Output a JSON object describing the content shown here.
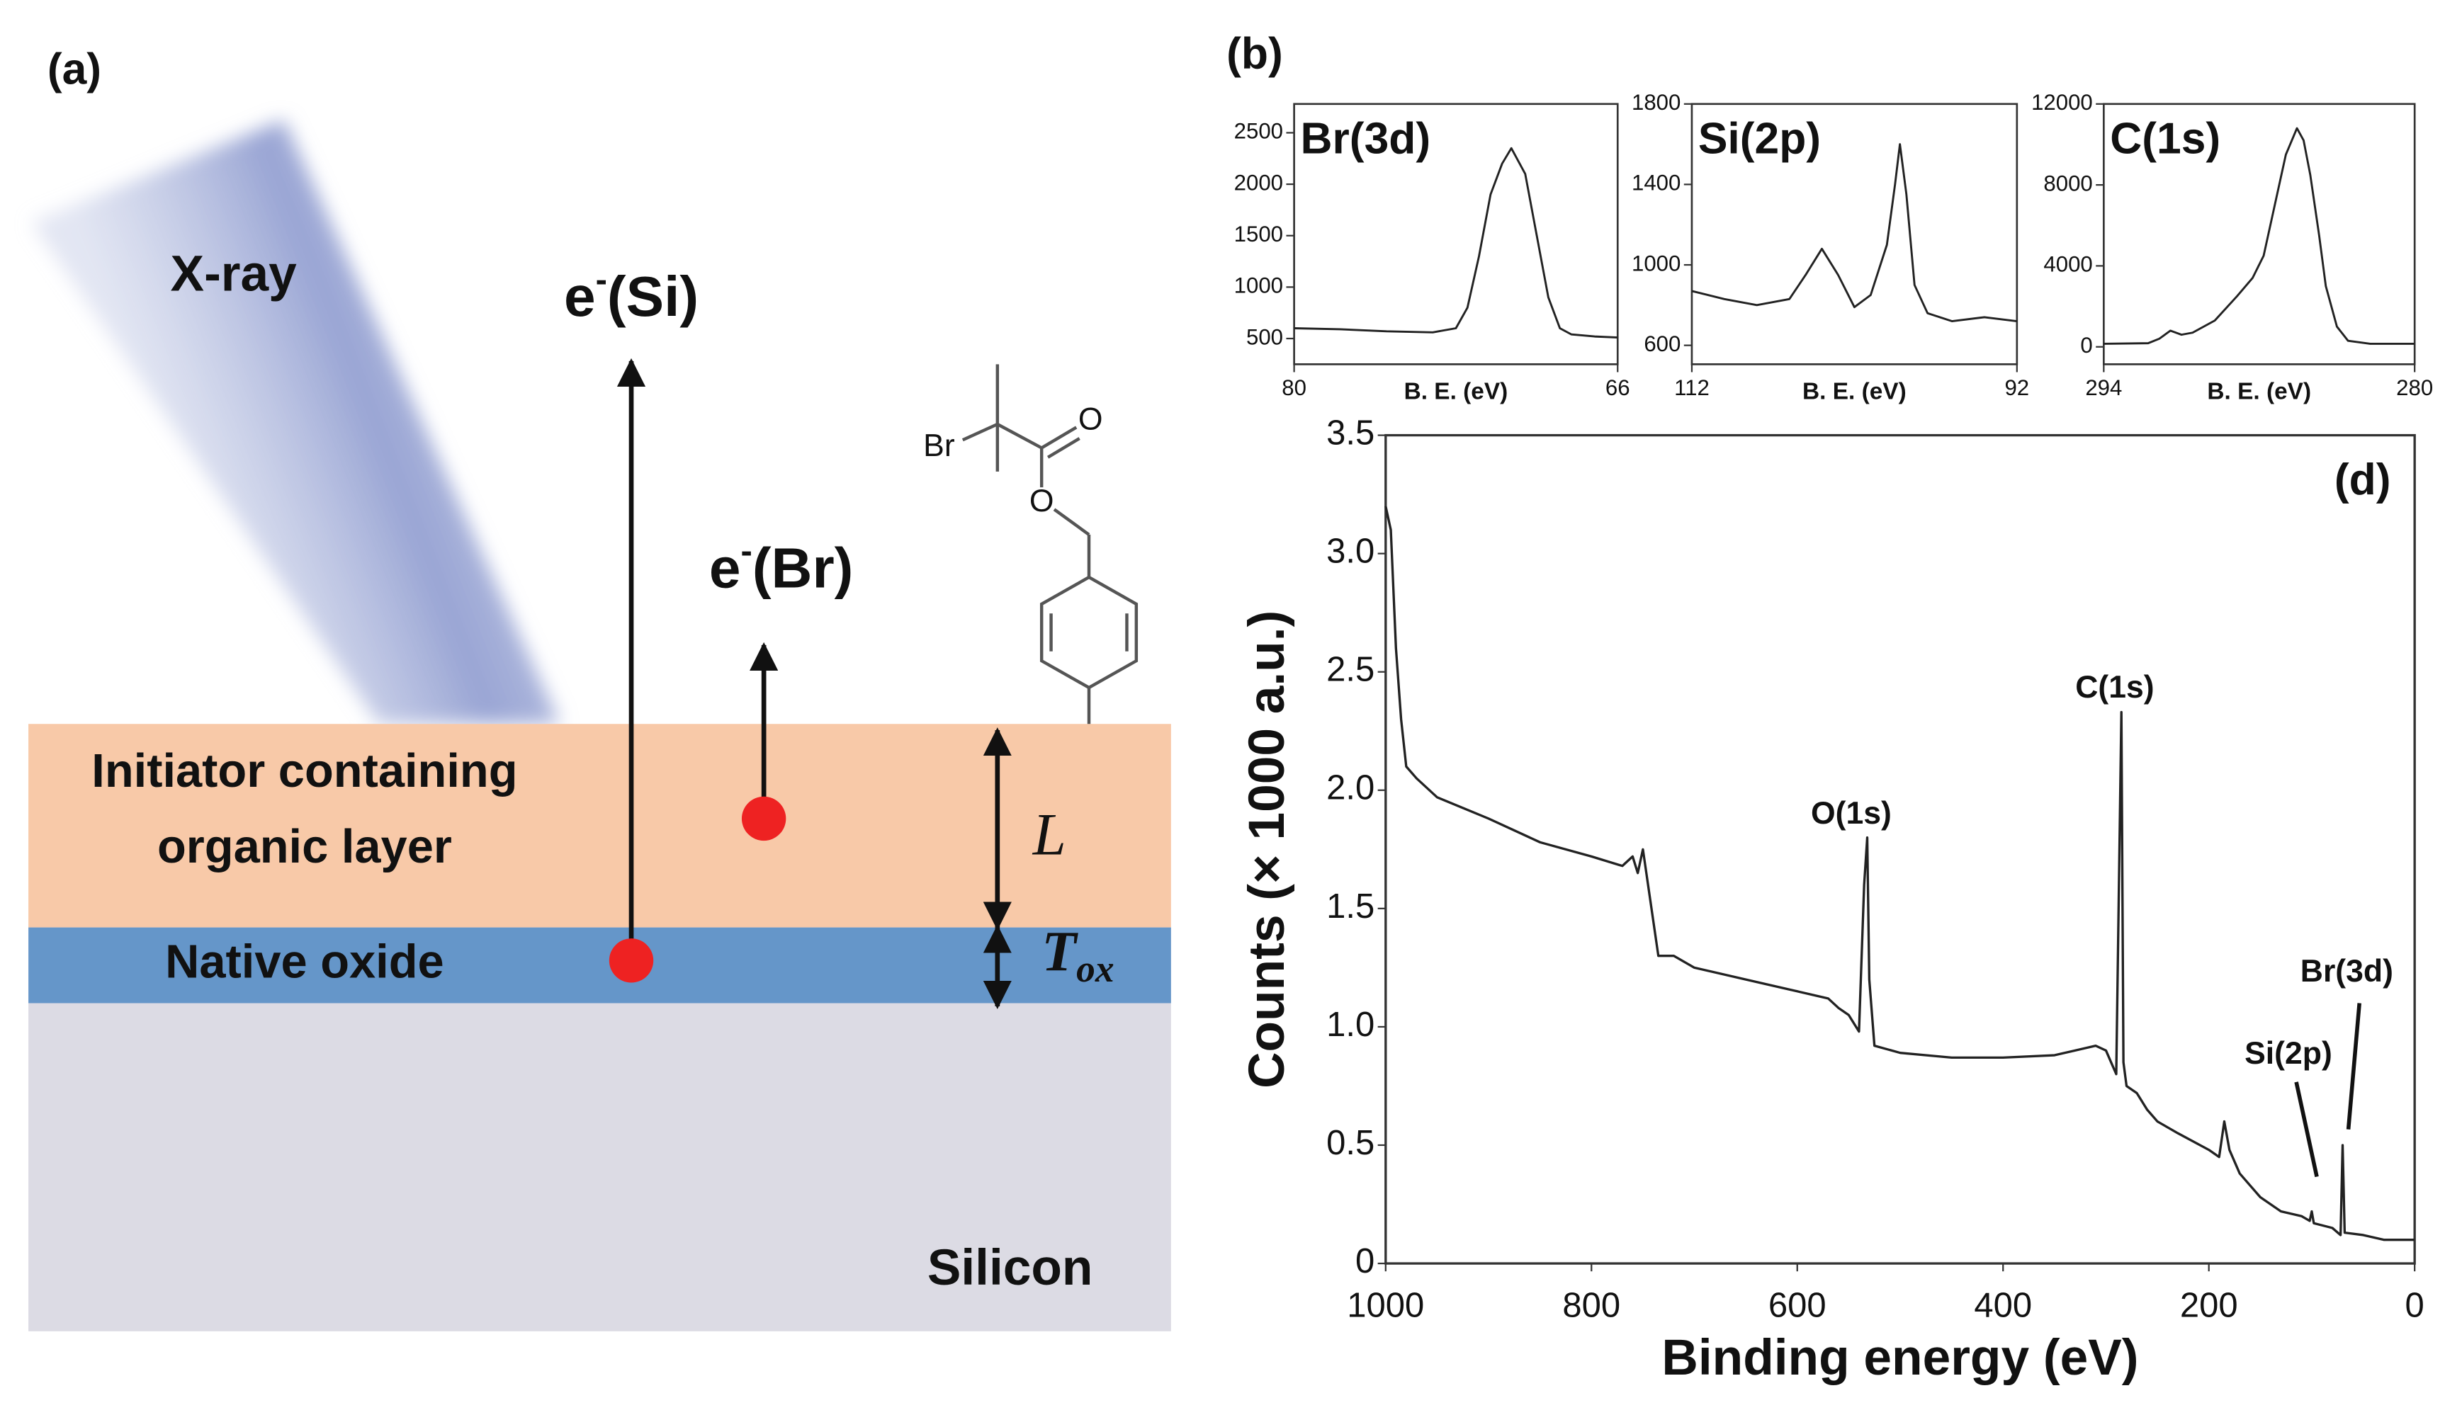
{
  "panel_a": {
    "label": "(a)",
    "xray": "X-ray",
    "electron_si": {
      "base": "e",
      "sup": "-",
      "rest": "(Si)"
    },
    "electron_br": {
      "base": "e",
      "sup": "-",
      "rest": "(Br)"
    },
    "organic_layer": [
      "Initiator containing",
      "organic layer"
    ],
    "oxide": "Native oxide",
    "silicon": "Silicon",
    "thickness_l": "L",
    "thickness_ox": {
      "base": "T",
      "sub": "ox"
    },
    "molecule": {
      "br": "Br",
      "o_carbonyl": "O",
      "o_ester": "O"
    }
  },
  "panel_b_label": "(b)",
  "chart_data": [
    {
      "type": "line",
      "title": "Br(3d)",
      "xlabel": "B. E. (eV)",
      "color": "#222222",
      "x": [
        80,
        78,
        76,
        74,
        73,
        72.5,
        72,
        71.5,
        71,
        70.6,
        70,
        69.5,
        69,
        68.5,
        68,
        67,
        66
      ],
      "values": [
        600,
        590,
        570,
        560,
        600,
        800,
        1300,
        1900,
        2200,
        2350,
        2100,
        1500,
        900,
        600,
        540,
        520,
        510
      ],
      "xlim": [
        80,
        66
      ],
      "xticks": [
        80,
        66
      ],
      "ylim": [
        250,
        2780
      ],
      "yticks": [
        500,
        1000,
        1500,
        2000,
        2500
      ]
    },
    {
      "type": "line",
      "title": "Si(2p)",
      "xlabel": "B. E. (eV)",
      "color": "#222222",
      "x": [
        112,
        110,
        108,
        106,
        105,
        104,
        103,
        102,
        101,
        100,
        99.5,
        99.2,
        98.8,
        98.3,
        97.5,
        96,
        94,
        92
      ],
      "values": [
        870,
        830,
        800,
        830,
        950,
        1080,
        950,
        790,
        850,
        1100,
        1400,
        1600,
        1350,
        900,
        760,
        720,
        740,
        720
      ],
      "xlim": [
        112,
        92
      ],
      "xticks": [
        112,
        92
      ],
      "ylim": [
        506,
        1800
      ],
      "yticks": [
        600,
        1000,
        1400,
        1800
      ]
    },
    {
      "type": "line",
      "title": "C(1s)",
      "xlabel": "B. E. (eV)",
      "color": "#222222",
      "x": [
        294,
        292,
        291.5,
        291,
        290.5,
        290,
        289,
        288,
        287.3,
        286.8,
        286.3,
        285.8,
        285.3,
        285,
        284.7,
        284.3,
        284,
        283.5,
        283,
        282,
        280
      ],
      "values": [
        150,
        180,
        400,
        800,
        600,
        700,
        1300,
        2500,
        3400,
        4500,
        7000,
        9500,
        10800,
        10200,
        8500,
        5500,
        3000,
        1000,
        300,
        150,
        150
      ],
      "xlim": [
        294,
        280
      ],
      "xticks": [
        294,
        280
      ],
      "ylim": [
        -860,
        12000
      ],
      "yticks": [
        0,
        4000,
        8000,
        12000
      ]
    },
    {
      "type": "line",
      "panel_label": "(d)",
      "xlabel": "Binding energy (eV)",
      "ylabel": "Counts (× 1000 a.u.)",
      "color": "#222222",
      "x": [
        1000,
        995,
        990,
        985,
        980,
        970,
        950,
        900,
        850,
        800,
        770,
        760,
        755,
        750,
        745,
        740,
        735,
        720,
        700,
        650,
        600,
        570,
        560,
        550,
        540,
        535,
        532,
        530,
        525,
        500,
        450,
        400,
        350,
        310,
        300,
        295,
        290,
        285,
        283,
        280,
        270,
        260,
        250,
        230,
        200,
        190,
        185,
        180,
        170,
        160,
        150,
        130,
        110,
        102,
        100,
        98,
        80,
        72,
        70,
        68,
        50,
        30,
        10,
        0
      ],
      "values": [
        3.2,
        3.1,
        2.6,
        2.3,
        2.1,
        2.05,
        1.97,
        1.88,
        1.78,
        1.72,
        1.68,
        1.72,
        1.65,
        1.75,
        1.6,
        1.45,
        1.3,
        1.3,
        1.25,
        1.2,
        1.15,
        1.12,
        1.08,
        1.05,
        0.98,
        1.6,
        1.8,
        1.2,
        0.92,
        0.89,
        0.87,
        0.87,
        0.88,
        0.92,
        0.9,
        0.85,
        0.8,
        2.33,
        0.85,
        0.75,
        0.72,
        0.65,
        0.6,
        0.55,
        0.48,
        0.45,
        0.6,
        0.48,
        0.38,
        0.33,
        0.28,
        0.22,
        0.2,
        0.18,
        0.22,
        0.17,
        0.15,
        0.12,
        0.5,
        0.13,
        0.12,
        0.1,
        0.1,
        0.1
      ],
      "xlim": [
        1000,
        0
      ],
      "xticks": [
        1000,
        800,
        600,
        400,
        200,
        0
      ],
      "ylim": [
        0,
        3.5
      ],
      "yticks": [
        0,
        0.5,
        {
          "value": 1,
          "label": "1.0"
        },
        1.5,
        {
          "value": 2,
          "label": "2.0"
        },
        2.5,
        {
          "value": 3,
          "label": "3.0"
        },
        3.5
      ],
      "annotations": [
        "O(1s)",
        "C(1s)",
        "Si(2p)",
        "Br(3d)"
      ]
    }
  ]
}
